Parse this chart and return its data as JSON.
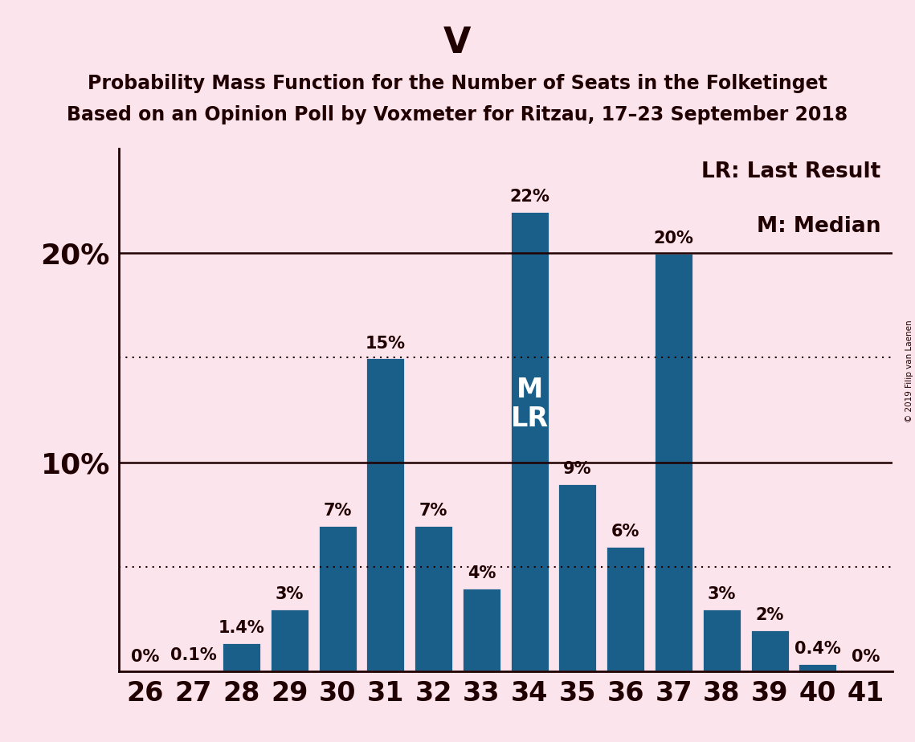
{
  "title_main": "V",
  "title_line1": "Probability Mass Function for the Number of Seats in the Folketinget",
  "title_line2": "Based on an Opinion Poll by Voxmeter for Ritzau, 17–23 September 2018",
  "copyright_text": "© 2019 Filip van Laenen",
  "legend_lr": "LR: Last Result",
  "legend_m": "M: Median",
  "background_color": "#fce4ec",
  "bar_color": "#1a5f8a",
  "bar_edge_color": "#fce4ec",
  "text_color": "#200000",
  "seats": [
    26,
    27,
    28,
    29,
    30,
    31,
    32,
    33,
    34,
    35,
    36,
    37,
    38,
    39,
    40,
    41
  ],
  "values": [
    0.0,
    0.1,
    1.4,
    3.0,
    7.0,
    15.0,
    7.0,
    4.0,
    22.0,
    9.0,
    6.0,
    20.0,
    3.0,
    2.0,
    0.4,
    0.0
  ],
  "labels": [
    "0%",
    "0.1%",
    "1.4%",
    "3%",
    "7%",
    "15%",
    "7%",
    "4%",
    "22%",
    "9%",
    "6%",
    "20%",
    "3%",
    "2%",
    "0.4%",
    "0%"
  ],
  "median_seat": 34,
  "lr_seat": 34,
  "ylim": [
    0,
    25
  ],
  "hlines_solid": [
    10,
    20
  ],
  "hlines_dotted": [
    5,
    15
  ],
  "title_fontsize": 32,
  "subtitle_fontsize": 17,
  "bar_label_fontsize": 15,
  "axis_tick_fontsize": 24,
  "legend_fontsize": 19,
  "ylabel_fontsize": 26,
  "mlr_fontsize": 24
}
